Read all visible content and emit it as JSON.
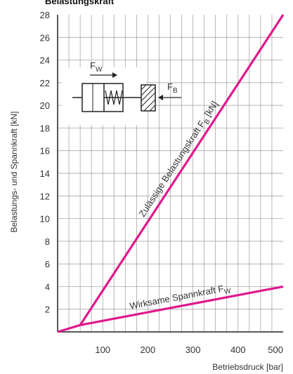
{
  "chart_data": {
    "type": "line",
    "title": "Belastungskraft",
    "xlabel": "Betriebsdruck [bar]",
    "ylabel": "Belastungs- und Spannkraft [kN]",
    "xlim": [
      0,
      500
    ],
    "ylim": [
      0,
      28
    ],
    "x_ticks": [
      100,
      200,
      300,
      400,
      500
    ],
    "y_ticks": [
      2,
      4,
      6,
      8,
      10,
      12,
      14,
      16,
      18,
      20,
      22,
      24,
      26,
      28
    ],
    "grid": true,
    "line_color": "#e0198c",
    "series": [
      {
        "name": "Zulässige Belastungskraft FB [kN]",
        "label_main": "Zulässige Belastungskraft F",
        "label_sub": "B",
        "label_tail": " [kN]",
        "x": [
          50,
          500
        ],
        "y": [
          0.6,
          28
        ]
      },
      {
        "name": "Wirksame Spannkraft FW",
        "label_main": "Wirksame Spannkraft F",
        "label_sub": "W",
        "label_tail": "",
        "x": [
          0,
          50,
          500
        ],
        "y": [
          0,
          0.6,
          4
        ]
      }
    ],
    "inset": {
      "fw_main": "F",
      "fw_sub": "W",
      "fb_main": "F",
      "fb_sub": "B"
    }
  }
}
